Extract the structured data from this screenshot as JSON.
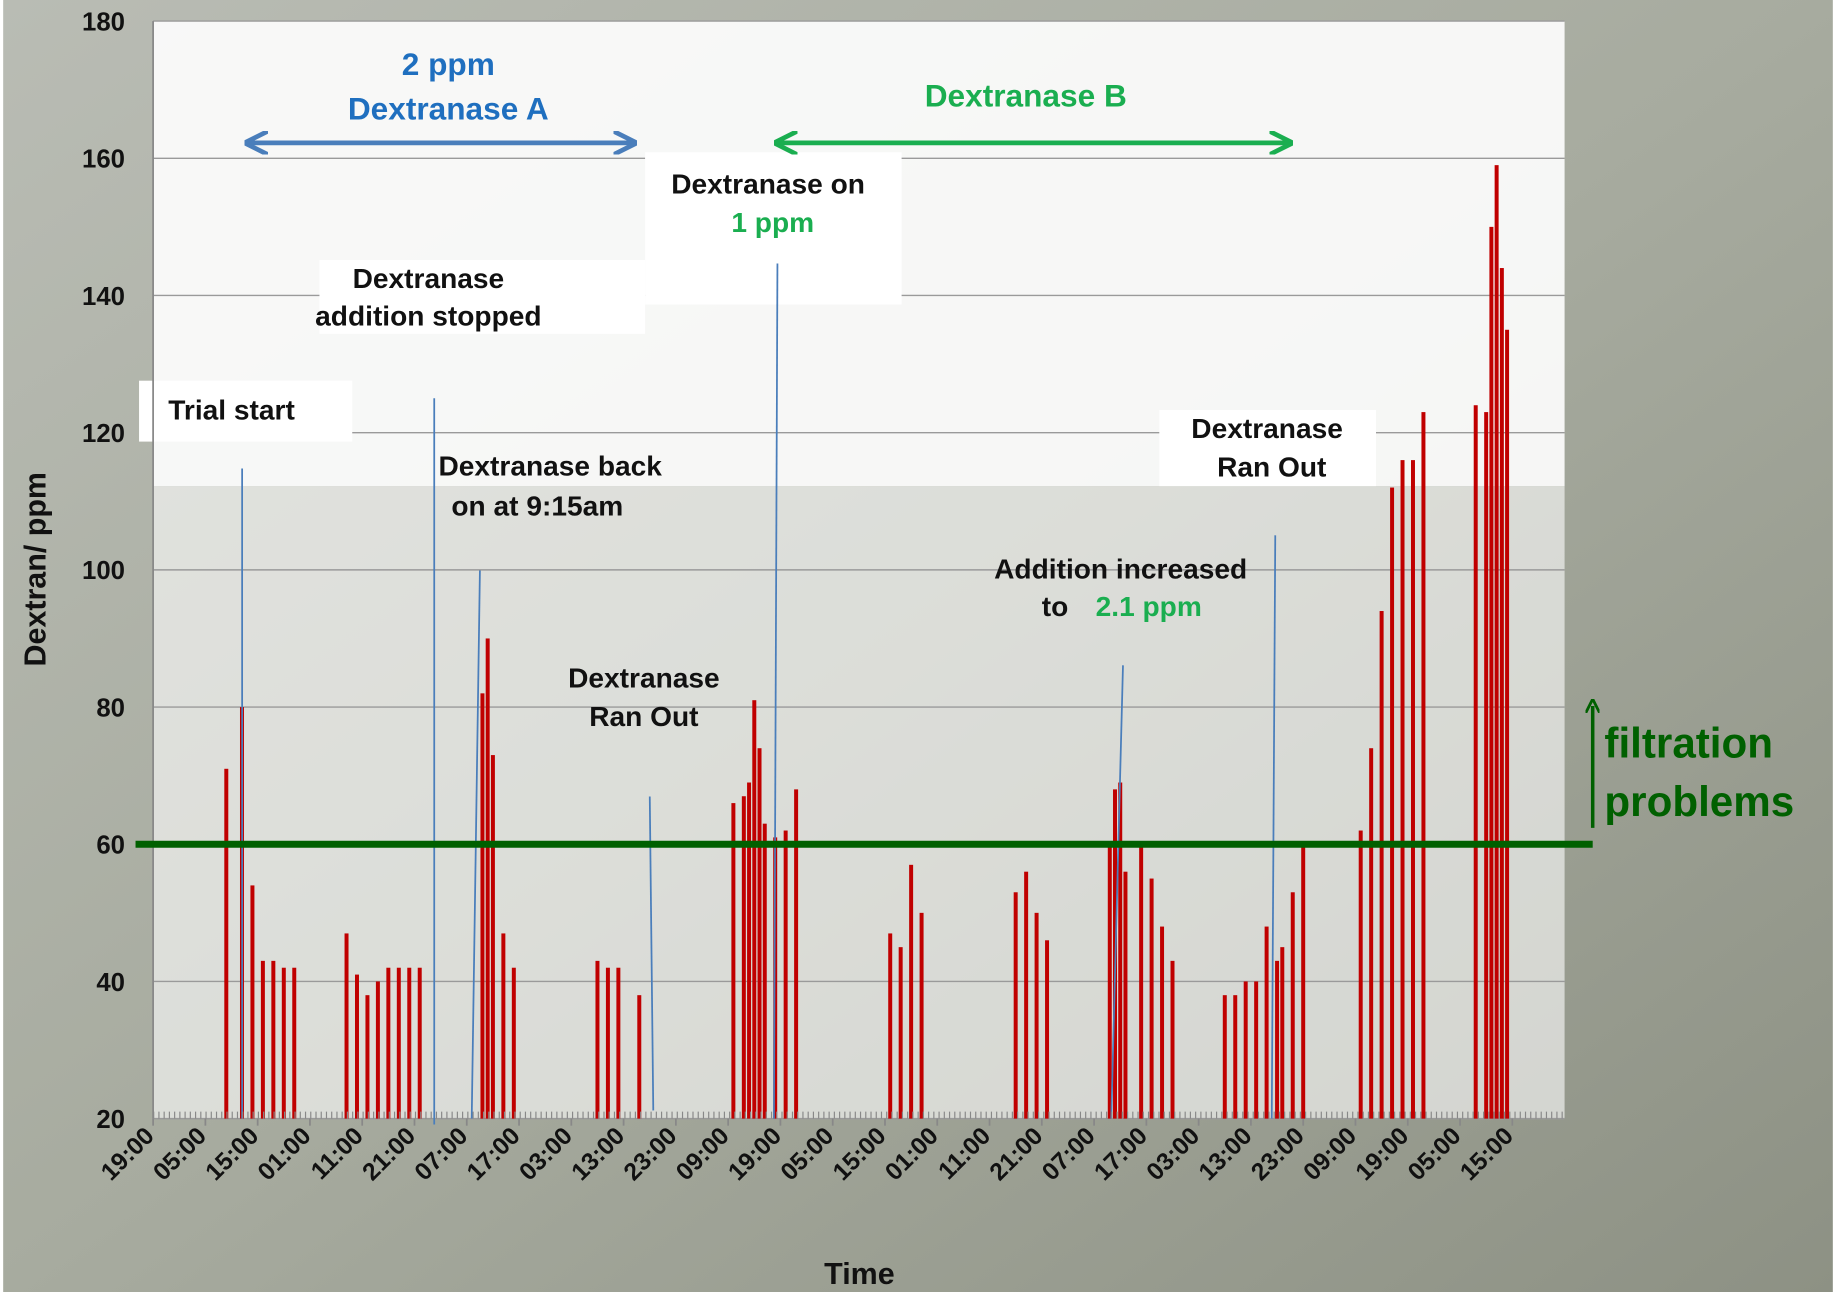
{
  "chart_data": {
    "type": "bar",
    "xlabel": "Time",
    "ylabel": "Dextran/ ppm",
    "x": [
      14,
      17,
      19,
      21,
      23,
      25,
      27,
      37,
      39,
      41,
      43,
      45,
      47,
      49,
      51,
      63,
      64,
      65,
      67,
      69,
      85,
      87,
      89,
      93,
      111,
      113,
      114,
      115,
      116,
      117,
      119,
      121,
      123,
      141,
      143,
      145,
      147,
      165,
      167,
      169,
      171,
      183,
      184,
      185,
      186,
      189,
      191,
      193,
      195,
      205,
      207,
      209,
      211,
      213,
      215,
      216,
      218,
      220,
      231,
      233,
      235,
      237,
      239,
      241,
      243,
      253,
      255,
      256,
      257,
      258,
      259
    ],
    "values": [
      71,
      80,
      54,
      43,
      43,
      42,
      42,
      47,
      41,
      38,
      40,
      42,
      42,
      42,
      42,
      82,
      90,
      73,
      47,
      42,
      43,
      42,
      42,
      38,
      66,
      67,
      69,
      81,
      74,
      63,
      61,
      62,
      68,
      47,
      45,
      57,
      50,
      53,
      56,
      50,
      46,
      60,
      68,
      69,
      56,
      60,
      55,
      48,
      43,
      38,
      38,
      40,
      40,
      48,
      43,
      45,
      53,
      60,
      62,
      74,
      94,
      112,
      116,
      116,
      123,
      124,
      123,
      150,
      159,
      144,
      135
    ],
    "color": "#c00000",
    "xlim": [
      0,
      270
    ],
    "ylim": [
      20,
      180
    ],
    "xticks": [
      {
        "value": 0,
        "label": "19:00"
      },
      {
        "value": 10,
        "label": "05:00"
      },
      {
        "value": 20,
        "label": "15:00"
      },
      {
        "value": 30,
        "label": "01:00"
      },
      {
        "value": 40,
        "label": "11:00"
      },
      {
        "value": 50,
        "label": "21:00"
      },
      {
        "value": 60,
        "label": "07:00"
      },
      {
        "value": 70,
        "label": "17:00"
      },
      {
        "value": 80,
        "label": "03:00"
      },
      {
        "value": 90,
        "label": "13:00"
      },
      {
        "value": 100,
        "label": "23:00"
      },
      {
        "value": 110,
        "label": "09:00"
      },
      {
        "value": 120,
        "label": "19:00"
      },
      {
        "value": 130,
        "label": "05:00"
      },
      {
        "value": 140,
        "label": "15:00"
      },
      {
        "value": 150,
        "label": "01:00"
      },
      {
        "value": 160,
        "label": "11:00"
      },
      {
        "value": 170,
        "label": "21:00"
      },
      {
        "value": 180,
        "label": "07:00"
      },
      {
        "value": 190,
        "label": "17:00"
      },
      {
        "value": 200,
        "label": "03:00"
      },
      {
        "value": 210,
        "label": "13:00"
      },
      {
        "value": 220,
        "label": "23:00"
      },
      {
        "value": 230,
        "label": "09:00"
      },
      {
        "value": 240,
        "label": "19:00"
      },
      {
        "value": 250,
        "label": "05:00"
      },
      {
        "value": 260,
        "label": "15:00"
      }
    ],
    "yticks": [
      20,
      40,
      60,
      80,
      100,
      120,
      140,
      160,
      180
    ],
    "grid": true,
    "threshold": {
      "value": 60,
      "color": "#006000",
      "label": [
        "filtration",
        "problems"
      ]
    },
    "annotations": {
      "dose_a": "2 ppm",
      "period_a": "Dextranase A",
      "period_b": "Dextranase B",
      "on_1": "Dextranase on",
      "on_2": "1 ppm",
      "stopped_1": "Dextranase",
      "stopped_2": "addition stopped",
      "trial": "Trial start",
      "back_1": "Dextranase back",
      "back_2": "on at 9:15am",
      "ranout_a_1": "Dextranase",
      "ranout_a_2": "Ran Out",
      "increase_1": "Addition increased",
      "increase_2a": "to",
      "increase_2b": "2.1 ppm",
      "ranout_b_1": "Dextranase",
      "ranout_b_2": "Ran Out"
    }
  }
}
